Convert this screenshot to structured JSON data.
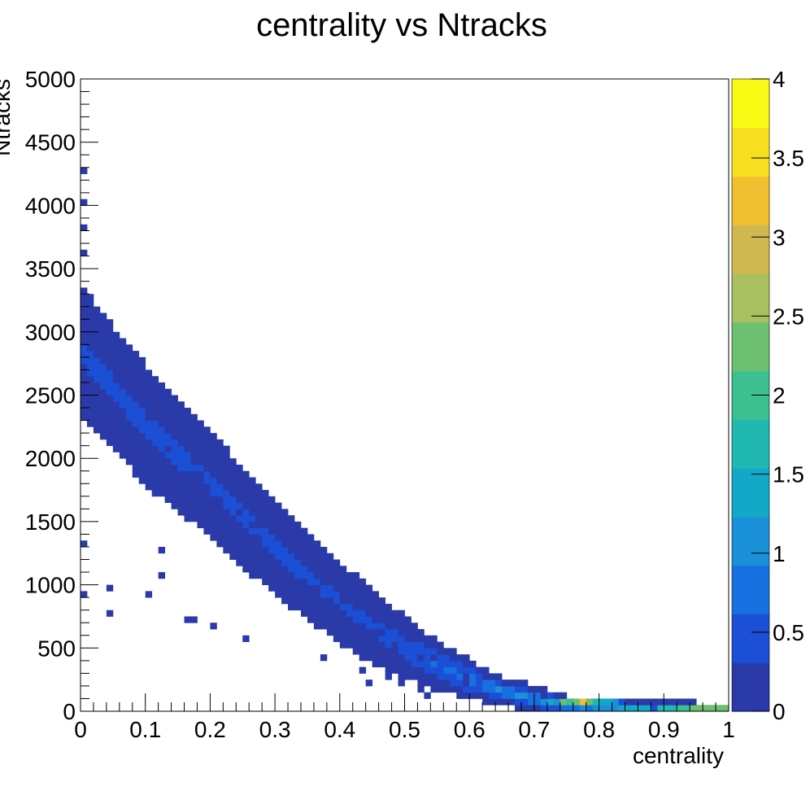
{
  "chart_data": {
    "type": "heatmap",
    "title": "centrality vs Ntracks",
    "xlabel": "centrality",
    "ylabel": "Ntracks",
    "xlim": [
      0,
      1
    ],
    "ylim": [
      0,
      5000
    ],
    "xticks": [
      "0",
      "0.1",
      "0.2",
      "0.3",
      "0.4",
      "0.5",
      "0.6",
      "0.7",
      "0.8",
      "0.9",
      "1"
    ],
    "yticks": [
      "0",
      "500",
      "1000",
      "1500",
      "2000",
      "2500",
      "3000",
      "3500",
      "4000",
      "4500",
      "5000"
    ],
    "colorbar": {
      "range": [
        0,
        4
      ],
      "ticks": [
        "0",
        "0.5",
        "1",
        "1.5",
        "2",
        "2.5",
        "3",
        "3.5",
        "4"
      ],
      "palette": "kBird",
      "colors": [
        "#2a3aa8",
        "#1a4fd6",
        "#1670e0",
        "#1a90d8",
        "#12a8c8",
        "#20b8b0",
        "#3cc090",
        "#6cc070",
        "#a8c060",
        "#d0b850",
        "#f0c030",
        "#f8e020",
        "#f9fa14"
      ]
    },
    "band": {
      "description_points_centrality": [
        0.0,
        0.05,
        0.1,
        0.15,
        0.2,
        0.25,
        0.3,
        0.35,
        0.4,
        0.45,
        0.5,
        0.55,
        0.6,
        0.65,
        0.7,
        0.75,
        0.8,
        0.85,
        0.9,
        0.95,
        1.0
      ],
      "ntracks_upper": [
        3350,
        3020,
        2720,
        2450,
        2180,
        1920,
        1640,
        1380,
        1150,
        950,
        730,
        540,
        390,
        250,
        180,
        100,
        80,
        70,
        70,
        50,
        40
      ],
      "ntracks_lower": [
        2350,
        2100,
        1800,
        1600,
        1400,
        1150,
        950,
        750,
        560,
        400,
        280,
        190,
        120,
        70,
        20,
        0,
        0,
        0,
        0,
        0,
        0
      ],
      "peak_value": 4,
      "peak_centrality": 0.77,
      "peak_ntracks": 60
    },
    "outliers": [
      [
        0.005,
        4270
      ],
      [
        0.005,
        4000
      ],
      [
        0.005,
        3800
      ],
      [
        0.005,
        3600
      ],
      [
        0.005,
        1300
      ],
      [
        0.005,
        900
      ],
      [
        0.045,
        980
      ],
      [
        0.105,
        920
      ],
      [
        0.125,
        1260
      ],
      [
        0.125,
        1080
      ],
      [
        0.045,
        760
      ],
      [
        0.165,
        710
      ],
      [
        0.175,
        730
      ],
      [
        0.205,
        660
      ],
      [
        0.255,
        580
      ],
      [
        0.375,
        420
      ],
      [
        0.435,
        320
      ],
      [
        0.445,
        240
      ],
      [
        0.475,
        280
      ],
      [
        0.495,
        230
      ],
      [
        0.525,
        170
      ],
      [
        0.535,
        130
      ],
      [
        0.625,
        80
      ],
      [
        0.655,
        70
      ]
    ]
  }
}
